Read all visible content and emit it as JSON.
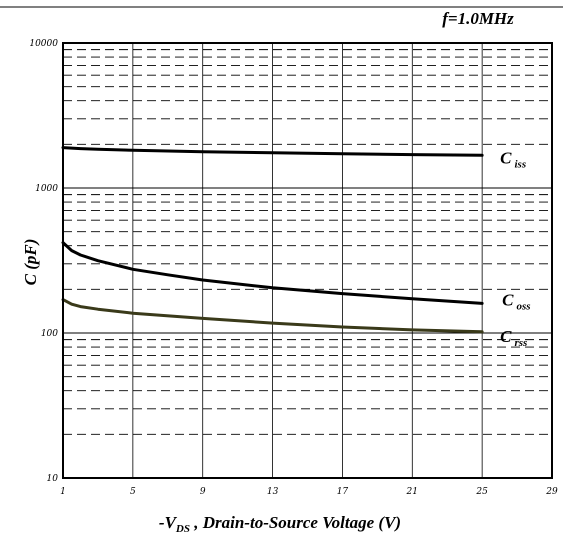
{
  "chart_data": {
    "type": "line",
    "title": "f=1.0MHz",
    "xlabel": {
      "prefix": "-V",
      "sub": "DS",
      "suffix": " , Drain-to-Source Voltage (V)"
    },
    "ylabel": "C (pF)",
    "xlim": [
      1,
      29
    ],
    "ylim": [
      10,
      10000
    ],
    "yscale": "log",
    "x_ticks": [
      "1",
      "5",
      "9",
      "13",
      "17",
      "21",
      "25",
      "29"
    ],
    "y_ticks": [
      "10",
      "100",
      "1000",
      "10000"
    ],
    "grid": true,
    "series": [
      {
        "name_main": "C",
        "name_sub": "iss",
        "color": "#000000",
        "x": [
          1,
          2,
          3,
          5,
          9,
          13,
          17,
          21,
          25
        ],
        "y": [
          1900,
          1870,
          1850,
          1820,
          1780,
          1750,
          1720,
          1700,
          1680
        ]
      },
      {
        "name_main": "C",
        "name_sub": "oss",
        "color": "#000000",
        "x": [
          1,
          1.5,
          2,
          3,
          5,
          7,
          9,
          13,
          17,
          21,
          25
        ],
        "y": [
          420,
          370,
          345,
          315,
          275,
          252,
          232,
          205,
          187,
          172,
          160
        ]
      },
      {
        "name_main": "C",
        "name_sub": "rss",
        "color": "#3a3a1a",
        "x": [
          1,
          1.5,
          2,
          3,
          5,
          9,
          13,
          17,
          21,
          25
        ],
        "y": [
          170,
          158,
          152,
          146,
          137,
          126,
          117,
          110,
          105,
          102
        ]
      }
    ]
  }
}
